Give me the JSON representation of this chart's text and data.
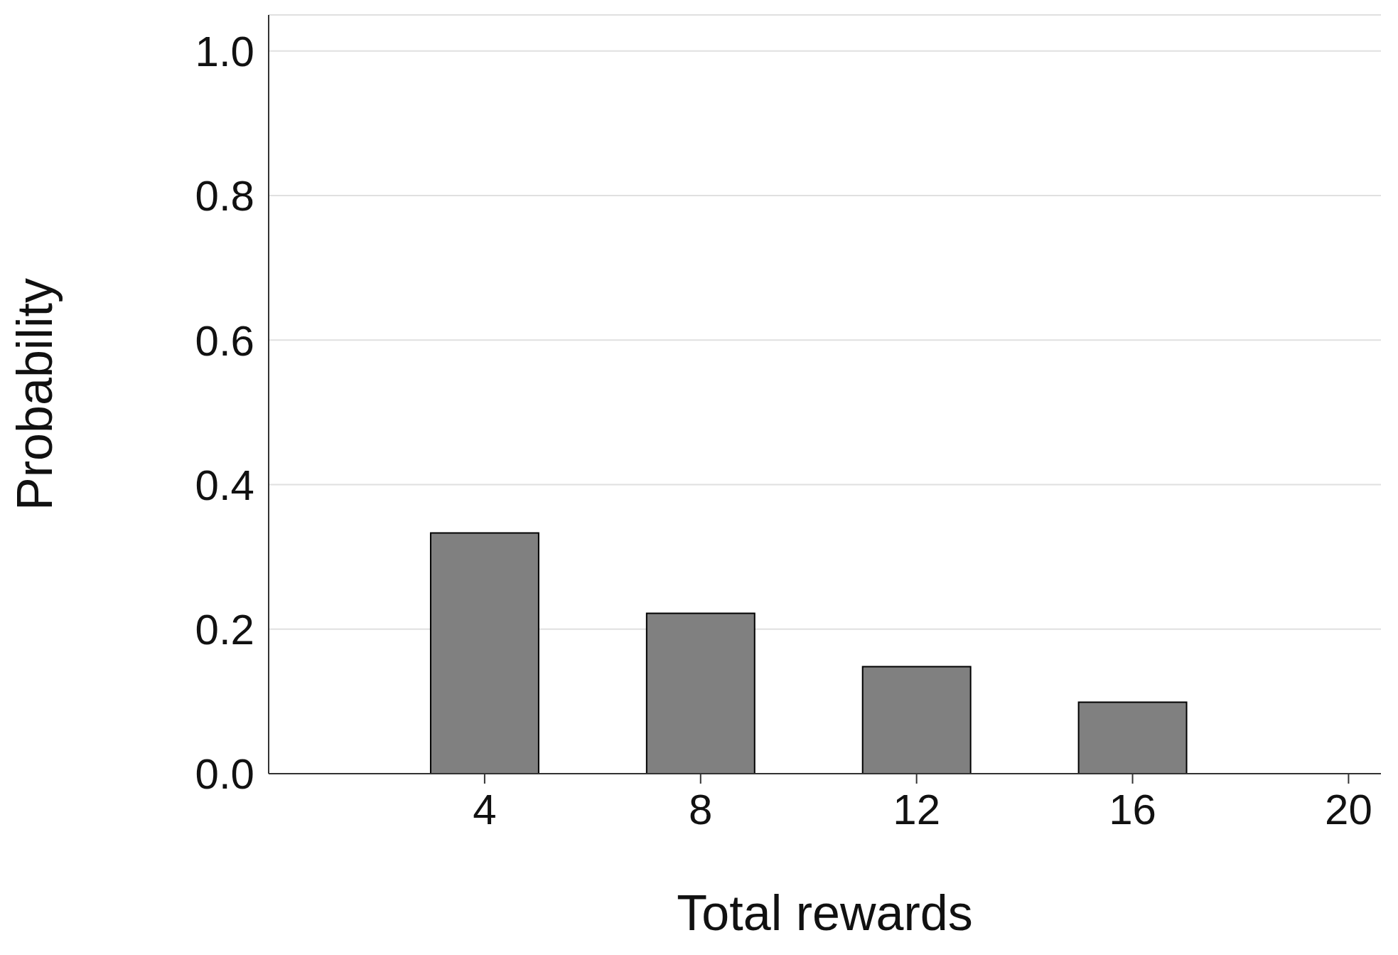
{
  "chart_data": {
    "type": "bar",
    "xlabel": "Total rewards",
    "ylabel": "Probability",
    "x": [
      4,
      8,
      12,
      16
    ],
    "values": [
      0.333,
      0.222,
      0.148,
      0.099
    ],
    "color": "#808080",
    "xlim": [
      0,
      20.6
    ],
    "xticks": [
      4,
      8,
      12,
      16,
      20
    ],
    "ylim": [
      0,
      1.05
    ],
    "yticks": [
      {
        "value": 0,
        "label": "0.0"
      },
      0.2,
      0.4,
      0.6,
      0.8,
      {
        "value": 1,
        "label": "1.0"
      }
    ],
    "grid": "y",
    "legend": false
  }
}
